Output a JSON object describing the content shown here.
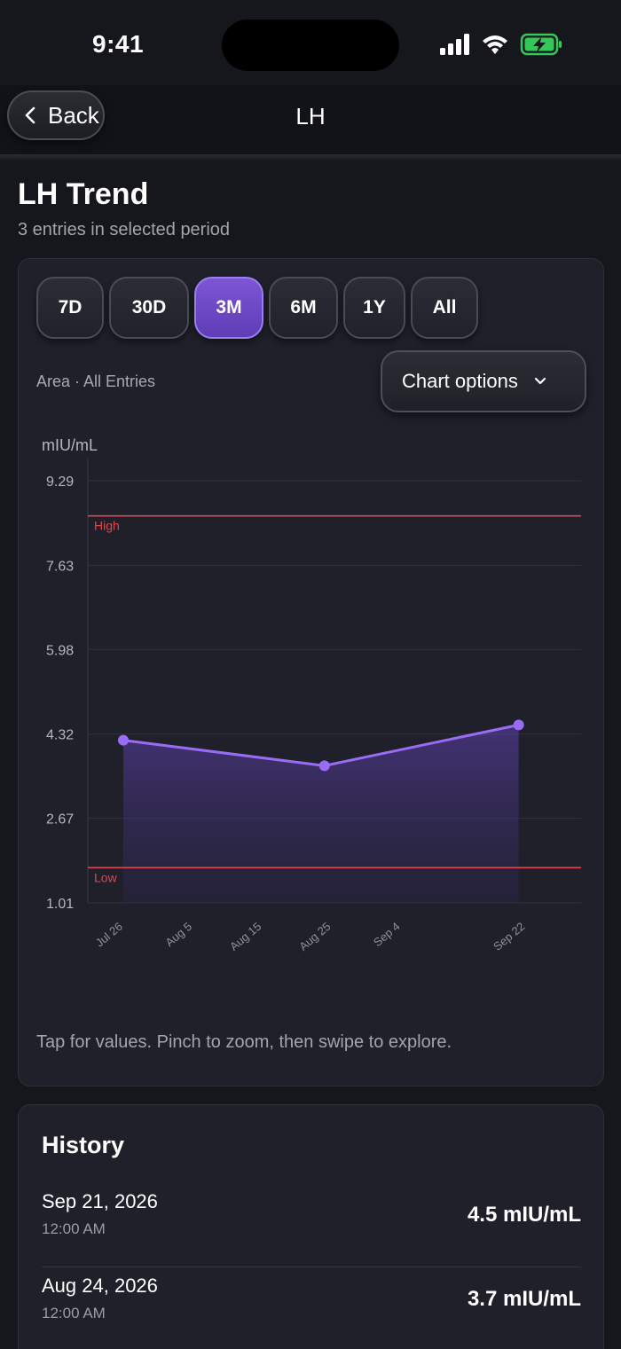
{
  "status_bar": {
    "time": "9:41"
  },
  "nav": {
    "back_label": "Back",
    "title": "LH"
  },
  "header": {
    "title": "LH Trend",
    "subtitle": "3 entries in selected period"
  },
  "ranges": [
    {
      "label": "7D",
      "active": false
    },
    {
      "label": "30D",
      "active": false
    },
    {
      "label": "3M",
      "active": true
    },
    {
      "label": "6M",
      "active": false
    },
    {
      "label": "1Y",
      "active": false
    },
    {
      "label": "All",
      "active": false
    }
  ],
  "chart_meta": "Area · All Entries",
  "chart_options_label": "Chart options",
  "chart_hint": "Tap for values. Pinch to zoom, then swipe to explore.",
  "colors": {
    "accent": "#7b56d6",
    "line": "#9a6cf5",
    "threshold": "#e0464f"
  },
  "chart_data": {
    "type": "area",
    "ylabel": "mIU/mL",
    "ylim": [
      1.01,
      9.29
    ],
    "yticks": [
      "9.29",
      "7.63",
      "5.98",
      "4.32",
      "2.67",
      "1.01"
    ],
    "xlim": [
      "2026-07-26",
      "2026-09-30"
    ],
    "xticks": [
      {
        "date": "2026-07-26",
        "label": "Jul 26"
      },
      {
        "date": "2026-08-05",
        "label": "Aug 5"
      },
      {
        "date": "2026-08-15",
        "label": "Aug 15"
      },
      {
        "date": "2026-08-25",
        "label": "Aug 25"
      },
      {
        "date": "2026-09-04",
        "label": "Sep 4"
      },
      {
        "date": "2026-09-22",
        "label": "Sep 22"
      }
    ],
    "points": [
      {
        "date": "2026-07-26",
        "value": 4.2
      },
      {
        "date": "2026-08-24",
        "value": 3.7
      },
      {
        "date": "2026-09-21",
        "value": 4.5
      }
    ],
    "thresholds": [
      {
        "label": "High",
        "value": 8.6
      },
      {
        "label": "Low",
        "value": 1.7
      }
    ],
    "grid": true
  },
  "history": {
    "title": "History",
    "entries": [
      {
        "date": "Sep 21, 2026",
        "time": "12:00 AM",
        "value": "4.5 mIU/mL"
      },
      {
        "date": "Aug 24, 2026",
        "time": "12:00 AM",
        "value": "3.7 mIU/mL"
      }
    ]
  }
}
